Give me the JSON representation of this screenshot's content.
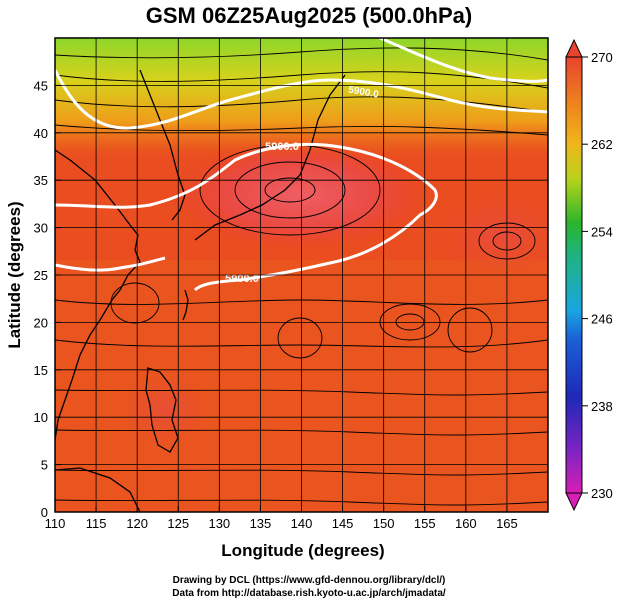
{
  "chart_data": {
    "type": "heatmap",
    "title": "GSM 06Z25Aug2025 (500.0hPa)",
    "xlabel": "Longitude (degrees)",
    "ylabel": "Latitude  (degrees)",
    "xlim": [
      110,
      170
    ],
    "ylim": [
      0,
      50
    ],
    "xticks": [
      "110",
      "115",
      "120",
      "125",
      "130",
      "135",
      "140",
      "145",
      "150",
      "155",
      "160",
      "165"
    ],
    "xtick_values": [
      110,
      115,
      120,
      125,
      130,
      135,
      140,
      145,
      150,
      155,
      160,
      165
    ],
    "yticks": [
      "0",
      "5",
      "10",
      "15",
      "20",
      "25",
      "30",
      "35",
      "40",
      "45"
    ],
    "ytick_values": [
      0,
      5,
      10,
      15,
      20,
      25,
      30,
      35,
      40,
      45
    ],
    "colorbar": {
      "range": [
        230,
        270
      ],
      "ticks": [
        "230",
        "238",
        "246",
        "254",
        "262",
        "270"
      ],
      "tick_values": [
        230,
        238,
        246,
        254,
        262,
        270
      ]
    },
    "contours": [
      {
        "label": "5900.0",
        "note": "northern height contour"
      },
      {
        "label": "5900.0",
        "note": "southern boundary of central high"
      },
      {
        "label": "5900.0",
        "note": "far-north contour near 47N, 143E"
      },
      {
        "label": "5880.0",
        "note": "southwest contour"
      }
    ],
    "high_center": {
      "lon": 136,
      "lat": 35
    },
    "eddies": [
      {
        "lon": 163,
        "lat": 31
      },
      {
        "lon": 151,
        "lat": 19
      },
      {
        "lon": 138,
        "lat": 17
      },
      {
        "lon": 158,
        "lat": 18
      },
      {
        "lon": 123,
        "lat": 21
      }
    ]
  },
  "credits": {
    "line1": "Drawing by DCL (https://www.gfd-dennou.org/library/dcl/)",
    "line2": "Data from http://database.rish.kyoto-u.ac.jp/arch/jmadata/"
  }
}
